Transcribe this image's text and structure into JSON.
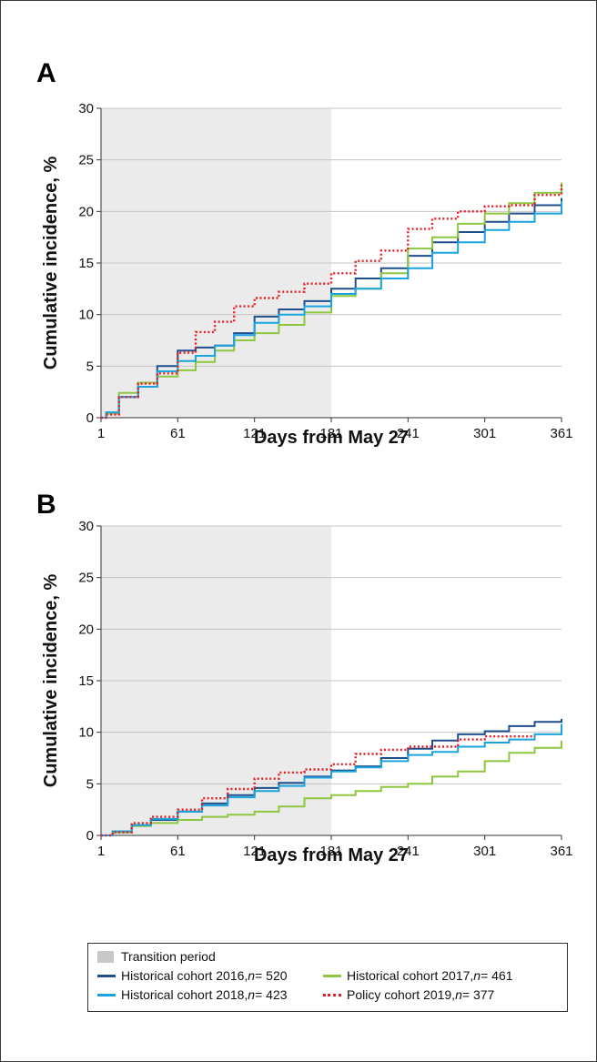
{
  "legend": {
    "transition": {
      "label": "Transition period",
      "color": "#c8c8c8"
    },
    "series": [
      {
        "name": "Historical cohort 2016, ",
        "n": "n",
        "eq": " = 520",
        "color": "#1f4e8c",
        "style": "solid"
      },
      {
        "name": "Historical cohort 2017, ",
        "n": "n",
        "eq": " = 461",
        "color": "#8dc63f",
        "style": "solid"
      },
      {
        "name": "Historical cohort 2018, ",
        "n": "n",
        "eq": " = 423",
        "color": "#1aa3dc",
        "style": "solid"
      },
      {
        "name": "Policy cohort 2019, ",
        "n": "n",
        "eq": " = 377",
        "color": "#e31e24",
        "style": "dotted"
      }
    ]
  },
  "chart_data": [
    {
      "panel": "A",
      "type": "line",
      "xlabel": "Days from May 27",
      "ylabel": "Cumulative incidence, %",
      "xlim": [
        1,
        361
      ],
      "ylim": [
        0,
        30
      ],
      "xticks": [
        1,
        61,
        121,
        181,
        241,
        301,
        361
      ],
      "yticks": [
        0,
        5,
        10,
        15,
        20,
        25,
        30
      ],
      "grid": "horizontal",
      "shaded_region": {
        "x": [
          1,
          181
        ],
        "label": "Transition period"
      },
      "series": [
        {
          "name": "Historical cohort 2016, n = 520",
          "color": "#1f4e8c",
          "style": "solid",
          "x": [
            1,
            5,
            15,
            30,
            45,
            61,
            75,
            90,
            105,
            121,
            140,
            160,
            181,
            200,
            220,
            241,
            260,
            280,
            301,
            320,
            340,
            361
          ],
          "y": [
            0,
            0.5,
            2,
            3,
            5,
            6.5,
            6.8,
            7,
            8.2,
            9.8,
            10.5,
            11.3,
            12.5,
            13.5,
            14.5,
            15.7,
            17,
            18,
            19,
            19.8,
            20.6,
            21.3
          ]
        },
        {
          "name": "Historical cohort 2017, n = 461",
          "color": "#8dc63f",
          "style": "solid",
          "x": [
            1,
            5,
            15,
            30,
            45,
            61,
            75,
            90,
            105,
            121,
            140,
            160,
            181,
            200,
            220,
            241,
            260,
            280,
            301,
            320,
            340,
            361
          ],
          "y": [
            0,
            0.4,
            2.4,
            3.4,
            4,
            4.6,
            5.4,
            6.5,
            7.5,
            8.2,
            9,
            10.2,
            11.8,
            12.5,
            14,
            16.4,
            17.5,
            18.8,
            19.8,
            20.8,
            21.8,
            22.8
          ]
        },
        {
          "name": "Historical cohort 2018, n = 423",
          "color": "#1aa3dc",
          "style": "solid",
          "x": [
            1,
            5,
            15,
            30,
            45,
            61,
            75,
            90,
            105,
            121,
            140,
            160,
            181,
            200,
            220,
            241,
            260,
            280,
            301,
            320,
            340,
            361
          ],
          "y": [
            0,
            0.5,
            2,
            3,
            4.5,
            5.5,
            6,
            7,
            8,
            9.2,
            10,
            10.8,
            12,
            12.5,
            13.5,
            14.5,
            16,
            17,
            18.2,
            19,
            19.8,
            21
          ]
        },
        {
          "name": "Policy cohort 2019, n = 377",
          "color": "#e31e24",
          "style": "dotted",
          "x": [
            1,
            5,
            15,
            30,
            45,
            61,
            75,
            90,
            105,
            121,
            140,
            160,
            181,
            200,
            220,
            241,
            260,
            280,
            301,
            320,
            340,
            361
          ],
          "y": [
            0,
            0.3,
            2,
            3.3,
            4.3,
            6.3,
            8.3,
            9.3,
            10.8,
            11.6,
            12.2,
            13,
            14,
            15.2,
            16.2,
            18.3,
            19.3,
            20,
            20.5,
            20.6,
            21.6,
            22.6
          ]
        }
      ]
    },
    {
      "panel": "B",
      "type": "line",
      "xlabel": "Days from May 27",
      "ylabel": "Cumulative incidence, %",
      "xlim": [
        1,
        361
      ],
      "ylim": [
        0,
        30
      ],
      "xticks": [
        1,
        61,
        121,
        181,
        241,
        301,
        361
      ],
      "yticks": [
        0,
        5,
        10,
        15,
        20,
        25,
        30
      ],
      "grid": "horizontal",
      "shaded_region": {
        "x": [
          1,
          181
        ],
        "label": "Transition period"
      },
      "series": [
        {
          "name": "Historical cohort 2016, n = 520",
          "color": "#1f4e8c",
          "style": "solid",
          "x": [
            1,
            10,
            25,
            40,
            61,
            80,
            100,
            121,
            140,
            160,
            181,
            200,
            220,
            241,
            260,
            280,
            301,
            320,
            340,
            361
          ],
          "y": [
            0,
            0.3,
            1,
            1.5,
            2.3,
            3.1,
            3.9,
            4.6,
            5.1,
            5.7,
            6.3,
            6.7,
            7.5,
            8.4,
            9.2,
            9.8,
            10.1,
            10.6,
            11,
            11.3
          ]
        },
        {
          "name": "Historical cohort 2017, n = 461",
          "color": "#8dc63f",
          "style": "solid",
          "x": [
            1,
            10,
            25,
            40,
            61,
            80,
            100,
            121,
            140,
            160,
            181,
            200,
            220,
            241,
            260,
            280,
            301,
            320,
            340,
            361
          ],
          "y": [
            0,
            0.3,
            0.9,
            1.2,
            1.5,
            1.8,
            2,
            2.3,
            2.8,
            3.6,
            3.9,
            4.3,
            4.7,
            5,
            5.7,
            6.2,
            7.2,
            8,
            8.5,
            9.2
          ]
        },
        {
          "name": "Historical cohort 2018, n = 423",
          "color": "#1aa3dc",
          "style": "solid",
          "x": [
            1,
            10,
            25,
            40,
            61,
            80,
            100,
            121,
            140,
            160,
            181,
            200,
            220,
            241,
            260,
            280,
            301,
            320,
            340,
            361
          ],
          "y": [
            0,
            0.4,
            1,
            1.6,
            2.3,
            2.9,
            3.7,
            4.3,
            4.8,
            5.6,
            6.2,
            6.6,
            7.2,
            7.8,
            8.1,
            8.6,
            9,
            9.3,
            9.8,
            10.8
          ]
        },
        {
          "name": "Policy cohort 2019, n = 377",
          "color": "#e31e24",
          "style": "dotted",
          "x": [
            1,
            10,
            25,
            40,
            61,
            80,
            100,
            121,
            140,
            160,
            181,
            200,
            220,
            241,
            260,
            280,
            301,
            320,
            340
          ],
          "y": [
            0,
            0.3,
            1.2,
            1.8,
            2.5,
            3.6,
            4.5,
            5.5,
            6.1,
            6.4,
            6.9,
            7.9,
            8.3,
            8.6,
            8.6,
            9.3,
            9.6,
            9.6,
            9.6
          ]
        }
      ]
    }
  ]
}
